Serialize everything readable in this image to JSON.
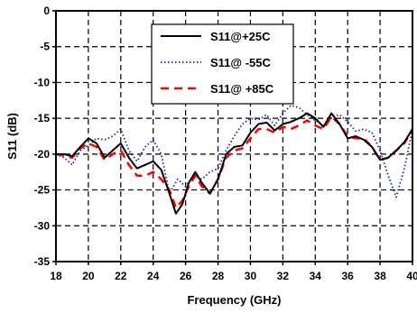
{
  "chart_data": {
    "type": "line",
    "title": "",
    "xlabel": "Frequency (GHz)",
    "ylabel": "S11 (dB)",
    "xlim": [
      18,
      40
    ],
    "ylim": [
      -35,
      0
    ],
    "xticks": [
      18,
      20,
      22,
      24,
      26,
      28,
      30,
      32,
      34,
      36,
      38,
      40
    ],
    "yticks": [
      0,
      -5,
      -10,
      -15,
      -20,
      -25,
      -30,
      -35
    ],
    "xtick_labels": [
      "18",
      "20",
      "22",
      "24",
      "26",
      "28",
      "30",
      "32",
      "34",
      "36",
      "38",
      "40"
    ],
    "ytick_labels": [
      "0",
      "-5",
      "-10",
      "-15",
      "-20",
      "-25",
      "-30",
      "-35"
    ],
    "grid": true,
    "legend_position": "top-center",
    "series": [
      {
        "name": "S11@+25C",
        "color": "#000000",
        "style": "solid",
        "x": [
          18,
          18.5,
          19,
          19.5,
          20,
          20.5,
          21,
          21.5,
          22,
          22.5,
          23,
          23.5,
          24,
          24.5,
          25,
          25.4,
          25.8,
          26.2,
          26.6,
          27,
          27.5,
          28,
          28.5,
          29,
          29.5,
          30,
          30.5,
          31,
          31.5,
          32,
          32.5,
          33,
          33.5,
          34,
          34.5,
          35,
          35.5,
          36,
          36.5,
          37,
          37.5,
          38,
          38.5,
          39,
          39.5,
          40
        ],
        "y": [
          -20,
          -20,
          -20.3,
          -19,
          -17.8,
          -18.5,
          -20.5,
          -19.5,
          -18.5,
          -20.5,
          -22,
          -21.5,
          -21,
          -22.2,
          -25.5,
          -28.3,
          -27,
          -24,
          -22.5,
          -24,
          -25.5,
          -23.5,
          -20,
          -19,
          -18.8,
          -17,
          -15.8,
          -15.6,
          -16.7,
          -15.8,
          -15.5,
          -15,
          -14.3,
          -15,
          -16.2,
          -14.3,
          -15.8,
          -17.8,
          -17.5,
          -18,
          -19,
          -20.8,
          -20.5,
          -19.5,
          -18.3,
          -16.5
        ]
      },
      {
        "name": "S11@ -55C",
        "color": "#1a2a9a",
        "style": "dotted",
        "x": [
          18,
          18.5,
          19,
          19.5,
          20,
          20.5,
          21,
          21.5,
          22,
          22.5,
          23,
          23.5,
          24,
          24.5,
          25,
          25.5,
          26,
          26.5,
          27,
          27.5,
          28,
          28.5,
          29,
          29.5,
          30,
          30.5,
          31,
          31.5,
          32,
          32.5,
          33,
          33.5,
          34,
          34.5,
          35,
          35.5,
          36,
          36.5,
          37,
          37.5,
          38,
          38.5,
          39,
          39.5,
          40
        ],
        "y": [
          -20,
          -20.5,
          -21.5,
          -19.5,
          -18.8,
          -17.8,
          -18,
          -17.5,
          -16.5,
          -19.5,
          -21,
          -19,
          -18,
          -20,
          -25.5,
          -23.5,
          -24.5,
          -23,
          -23.5,
          -22.5,
          -22,
          -19.5,
          -17.5,
          -15.8,
          -15,
          -15.2,
          -14.5,
          -16,
          -14.3,
          -13.2,
          -13.5,
          -14.5,
          -15.3,
          -16,
          -14.8,
          -14.5,
          -15.5,
          -16.8,
          -16.5,
          -17,
          -19.5,
          -23,
          -26,
          -22,
          -16.5
        ]
      },
      {
        "name": "S11@ +85C",
        "color": "#ff0000",
        "style": "dashed",
        "x": [
          18,
          18.5,
          19,
          19.5,
          20,
          20.5,
          21,
          21.5,
          22,
          22.5,
          23,
          23.5,
          24,
          24.5,
          25,
          25.4,
          25.8,
          26.2,
          26.6,
          27,
          27.5,
          28,
          28.5,
          29,
          29.5,
          30,
          30.5,
          31,
          31.5,
          32,
          32.5,
          33,
          33.5,
          34,
          34.5,
          35,
          35.5,
          36,
          36.5,
          37,
          37.5,
          38,
          38.5,
          39,
          39.5,
          40
        ],
        "y": [
          -20,
          -20.2,
          -20.5,
          -19.2,
          -18.5,
          -19,
          -20.8,
          -20,
          -19.5,
          -21.5,
          -23,
          -23,
          -22.5,
          -23.5,
          -25,
          -27.5,
          -26.5,
          -24.5,
          -23,
          -24.5,
          -25.5,
          -23.5,
          -20.5,
          -19.5,
          -19.2,
          -17.8,
          -16.5,
          -16.5,
          -17,
          -16.2,
          -16.5,
          -16,
          -15.3,
          -16,
          -16.5,
          -14.8,
          -15.8,
          -17.5,
          -17.8,
          -17.8,
          -19,
          -20.8,
          -20.5,
          -19.5,
          -18.5,
          -16.5
        ]
      }
    ]
  }
}
